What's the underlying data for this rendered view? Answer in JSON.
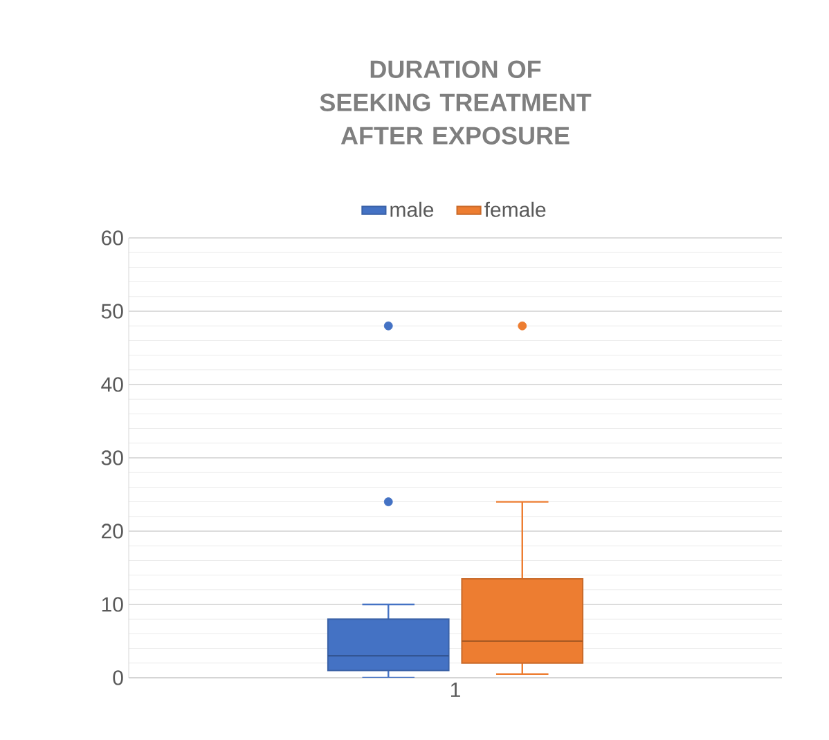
{
  "chart_data": {
    "type": "box",
    "title": "DURATION OF SEEKING TREATMENT AFTER EXPOSURE",
    "categories": [
      "1"
    ],
    "series": [
      {
        "name": "male",
        "color": "#4472c4",
        "boxes": [
          {
            "low": 0,
            "q1": 1,
            "median": 3,
            "q3": 8,
            "high": 10,
            "outliers": [
              24,
              48
            ]
          }
        ]
      },
      {
        "name": "female",
        "color": "#ed7d31",
        "boxes": [
          {
            "low": 0.5,
            "q1": 2,
            "median": 5,
            "q3": 13.5,
            "high": 24,
            "outliers": [
              48
            ]
          }
        ]
      }
    ],
    "ylim": [
      0,
      60
    ],
    "yticks": [
      0,
      10,
      20,
      30,
      40,
      50,
      60
    ],
    "grid": true,
    "legend": "top"
  }
}
